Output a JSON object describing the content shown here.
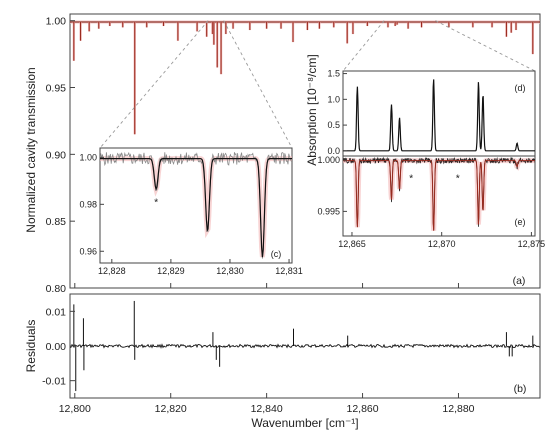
{
  "chart_data": [
    {
      "id": "a",
      "type": "line",
      "panel_label": "(a)",
      "xlabel": "Wavenumber [cm⁻¹]",
      "ylabel": "Normalized cavity transmission",
      "xlim": [
        12799,
        12897
      ],
      "ylim": [
        0.8,
        1.005
      ],
      "xticks": [
        12800,
        12820,
        12840,
        12860,
        12880
      ],
      "xtick_labels": [
        "12,800",
        "12,820",
        "12,840",
        "12,860",
        "12,880"
      ],
      "yticks": [
        0.8,
        0.85,
        0.9,
        0.95,
        1.0
      ],
      "ytick_labels": [
        "0.80",
        "0.85",
        "0.90",
        "0.95",
        "1.00"
      ],
      "baseline": 0.999,
      "lines": [
        {
          "x": 12799.8,
          "y": 0.97
        },
        {
          "x": 12801.2,
          "y": 0.985
        },
        {
          "x": 12803.0,
          "y": 0.992
        },
        {
          "x": 12805.0,
          "y": 0.994
        },
        {
          "x": 12807.3,
          "y": 0.996
        },
        {
          "x": 12810.0,
          "y": 0.995
        },
        {
          "x": 12812.5,
          "y": 0.915
        },
        {
          "x": 12815.0,
          "y": 0.995
        },
        {
          "x": 12818.5,
          "y": 0.996
        },
        {
          "x": 12821.5,
          "y": 0.985
        },
        {
          "x": 12825.5,
          "y": 0.992
        },
        {
          "x": 12827.5,
          "y": 0.988
        },
        {
          "x": 12828.7,
          "y": 0.99
        },
        {
          "x": 12829.0,
          "y": 0.982
        },
        {
          "x": 12829.7,
          "y": 0.965
        },
        {
          "x": 12830.5,
          "y": 0.96
        },
        {
          "x": 12831.5,
          "y": 0.99
        },
        {
          "x": 12833.0,
          "y": 0.994
        },
        {
          "x": 12836.5,
          "y": 0.993
        },
        {
          "x": 12840.0,
          "y": 0.994
        },
        {
          "x": 12843.0,
          "y": 0.994
        },
        {
          "x": 12845.5,
          "y": 0.984
        },
        {
          "x": 12848.5,
          "y": 0.993
        },
        {
          "x": 12851.0,
          "y": 0.994
        },
        {
          "x": 12854.0,
          "y": 0.995
        },
        {
          "x": 12856.8,
          "y": 0.983
        },
        {
          "x": 12858.0,
          "y": 0.99
        },
        {
          "x": 12861.0,
          "y": 0.996
        },
        {
          "x": 12865.3,
          "y": 0.995
        },
        {
          "x": 12866.8,
          "y": 0.996
        },
        {
          "x": 12867.2,
          "y": 0.997
        },
        {
          "x": 12869.5,
          "y": 0.994
        },
        {
          "x": 12872.3,
          "y": 0.995
        },
        {
          "x": 12878.0,
          "y": 0.995
        },
        {
          "x": 12883.0,
          "y": 0.995
        },
        {
          "x": 12887.0,
          "y": 0.995
        },
        {
          "x": 12890.0,
          "y": 0.988
        },
        {
          "x": 12891.0,
          "y": 0.991
        },
        {
          "x": 12892.0,
          "y": 0.993
        },
        {
          "x": 12895.5,
          "y": 0.975
        }
      ]
    },
    {
      "id": "b",
      "type": "line",
      "panel_label": "(b)",
      "ylabel": "Residuals",
      "xlim": [
        12799,
        12897
      ],
      "ylim": [
        -0.015,
        0.015
      ],
      "yticks": [
        -0.01,
        0.0,
        0.01
      ],
      "ytick_labels": [
        "-0.01",
        "0.00",
        "0.01"
      ],
      "spikes": [
        {
          "x": 12799.8,
          "y": 0.012
        },
        {
          "x": 12800.2,
          "y": -0.013
        },
        {
          "x": 12801.8,
          "y": 0.008
        },
        {
          "x": 12801.9,
          "y": -0.007
        },
        {
          "x": 12812.4,
          "y": 0.013
        },
        {
          "x": 12812.5,
          "y": -0.004
        },
        {
          "x": 12828.8,
          "y": 0.004
        },
        {
          "x": 12829.5,
          "y": -0.004
        },
        {
          "x": 12830.2,
          "y": -0.006
        },
        {
          "x": 12845.6,
          "y": 0.005
        },
        {
          "x": 12856.9,
          "y": 0.003
        },
        {
          "x": 12890.0,
          "y": 0.004
        },
        {
          "x": 12890.6,
          "y": -0.003
        },
        {
          "x": 12891.2,
          "y": -0.003
        },
        {
          "x": 12895.5,
          "y": 0.003
        }
      ]
    },
    {
      "id": "c",
      "type": "line",
      "panel_label": "(c)",
      "xlim": [
        12827.8,
        12831.05
      ],
      "ylim": [
        0.955,
        1.004
      ],
      "xticks": [
        12828,
        12829,
        12830,
        12831
      ],
      "xtick_labels": [
        "12,828",
        "12,829",
        "12,830",
        "12,831"
      ],
      "yticks": [
        0.96,
        0.98,
        1.0
      ],
      "ytick_labels": [
        "0.96",
        "0.98",
        "1.00"
      ],
      "lines": [
        {
          "x": 12828.75,
          "y": 0.987
        },
        {
          "x": 12829.62,
          "y": 0.969
        },
        {
          "x": 12830.55,
          "y": 0.958
        }
      ],
      "asterisk_x": 12828.75,
      "asterisk_y": 0.982,
      "asterisk_label": "*"
    },
    {
      "id": "d",
      "type": "line",
      "panel_label": "(d)",
      "ylabel": "Absorption [10⁻⁸/cm]",
      "xlim": [
        12864.5,
        12875.2
      ],
      "ylim": [
        -0.1,
        1.55
      ],
      "yticks": [
        0.0,
        0.5,
        1.0,
        1.5
      ],
      "ytick_labels": [
        "0.0",
        "0.5",
        "1.0",
        "1.5"
      ],
      "peaks": [
        {
          "x": 12865.3,
          "y": 1.25
        },
        {
          "x": 12867.2,
          "y": 0.9
        },
        {
          "x": 12867.65,
          "y": 0.65
        },
        {
          "x": 12869.55,
          "y": 1.4
        },
        {
          "x": 12872.05,
          "y": 1.35
        },
        {
          "x": 12872.3,
          "y": 1.1
        },
        {
          "x": 12874.2,
          "y": 0.15
        }
      ]
    },
    {
      "id": "e",
      "type": "line",
      "panel_label": "(e)",
      "xlim": [
        12864.5,
        12875.2
      ],
      "ylim": [
        0.9926,
        1.0004
      ],
      "xticks": [
        12865,
        12870,
        12875
      ],
      "xtick_labels": [
        "12,865",
        "12,870",
        "12,875"
      ],
      "yticks": [
        0.995,
        1.0
      ],
      "ytick_labels": [
        "0.995",
        "1.000"
      ],
      "dips": [
        {
          "x": 12865.3,
          "y": 0.9935
        },
        {
          "x": 12867.2,
          "y": 0.9962
        },
        {
          "x": 12867.65,
          "y": 0.9972
        },
        {
          "x": 12869.55,
          "y": 0.9931
        },
        {
          "x": 12872.05,
          "y": 0.9937
        },
        {
          "x": 12872.3,
          "y": 0.995
        },
        {
          "x": 12874.2,
          "y": 0.9994
        }
      ],
      "asterisks": [
        {
          "x": 12868.3,
          "y": 0.9985,
          "label": "*"
        },
        {
          "x": 12870.9,
          "y": 0.9985,
          "label": "*"
        }
      ]
    }
  ]
}
